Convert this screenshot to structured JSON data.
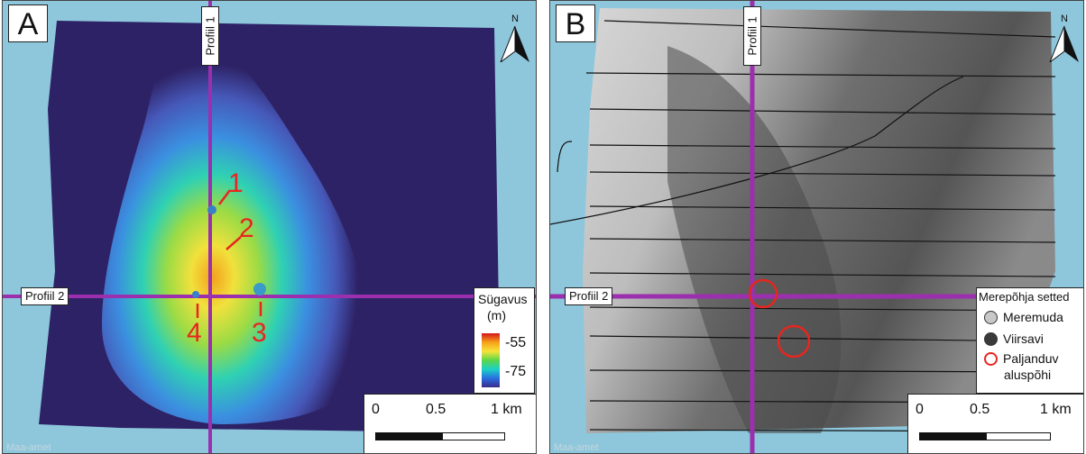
{
  "panelA": {
    "letter": "A",
    "north": "N",
    "profile1": "Profiil 1",
    "profile2": "Profiil 2",
    "markers": [
      "1",
      "2",
      "3",
      "4"
    ],
    "legend": {
      "title_line1": "Sügavus",
      "title_line2": "(m)",
      "max": "-55",
      "min": "-75",
      "ramp_colors": [
        "#d4161b",
        "#f7a11a",
        "#f6e43a",
        "#5ad64a",
        "#1bd1c6",
        "#2a6de0",
        "#3a2a88"
      ]
    },
    "scale": {
      "zero": "0",
      "half": "0.5",
      "one": "1 km"
    },
    "watermark": "Maa-amet"
  },
  "panelB": {
    "letter": "B",
    "north": "N",
    "profile1": "Profiil 1",
    "profile2": "Profiil 2",
    "legend": {
      "title": "Merepõhja setted",
      "item1": "Meremuda",
      "item2": "Viirsavi",
      "item3_line1": "Paljanduv",
      "item3_line2": "aluspõhi",
      "colors": {
        "meremuda": "#c8c8c8",
        "viirsavi": "#3a3a3a",
        "paljanduv": "#e8251f"
      }
    },
    "scale": {
      "zero": "0",
      "half": "0.5",
      "one": "1 km"
    },
    "watermark": "Maa-amet"
  },
  "colors": {
    "profile_line": "#9b2fae",
    "sea": "#8ec7dc",
    "marker": "#e8251f"
  }
}
